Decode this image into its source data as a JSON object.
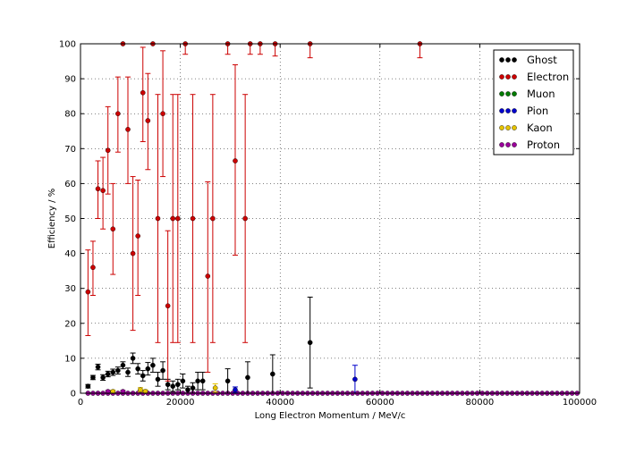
{
  "chart_data": {
    "type": "scatter",
    "title": "",
    "xlabel": "Long Electron Momentum / MeV/c",
    "ylabel": "Efficiency / %",
    "xlim": [
      0,
      100000
    ],
    "ylim": [
      0,
      100
    ],
    "x_ticks": [
      0,
      20000,
      40000,
      60000,
      80000,
      100000
    ],
    "y_ticks": [
      0,
      10,
      20,
      30,
      40,
      50,
      60,
      70,
      80,
      90,
      100
    ],
    "grid": true,
    "legend_position": "top-right",
    "series": [
      {
        "name": "Ghost",
        "color": "#000000",
        "points": [
          {
            "x": 1500,
            "y": 2,
            "err": 0.5
          },
          {
            "x": 2500,
            "y": 4.5,
            "err": 0.6
          },
          {
            "x": 3500,
            "y": 7.5,
            "err": 0.8
          },
          {
            "x": 4500,
            "y": 4.5,
            "err": 0.8
          },
          {
            "x": 5500,
            "y": 5.5,
            "err": 0.8
          },
          {
            "x": 6500,
            "y": 6,
            "err": 0.9
          },
          {
            "x": 7500,
            "y": 6.5,
            "err": 1
          },
          {
            "x": 8500,
            "y": 8,
            "err": 1
          },
          {
            "x": 9500,
            "y": 6,
            "err": 1.2
          },
          {
            "x": 10500,
            "y": 10,
            "err": 1.5
          },
          {
            "x": 11500,
            "y": 7,
            "err": 1.5
          },
          {
            "x": 12500,
            "y": 5,
            "err": 1.5
          },
          {
            "x": 13500,
            "y": 7,
            "err": 1.8
          },
          {
            "x": 14500,
            "y": 8,
            "err": 2
          },
          {
            "x": 15500,
            "y": 4,
            "err": 2
          },
          {
            "x": 16500,
            "y": 6.5,
            "err": 2.5
          },
          {
            "x": 17500,
            "y": 2.5,
            "err": 1.5
          },
          {
            "x": 18500,
            "y": 2,
            "err": 1.5
          },
          {
            "x": 19500,
            "y": 2.5,
            "err": 1.5
          },
          {
            "x": 20500,
            "y": 3.5,
            "err": 2
          },
          {
            "x": 21500,
            "y": 1,
            "err": 1
          },
          {
            "x": 22500,
            "y": 1.5,
            "err": 1.5
          },
          {
            "x": 23500,
            "y": 3.5,
            "err": 2.5
          },
          {
            "x": 24500,
            "y": 3.5,
            "err": 2.5
          },
          {
            "x": 29500,
            "y": 3.5,
            "err": 3.5
          },
          {
            "x": 33500,
            "y": 4.5,
            "err": 4.5
          },
          {
            "x": 38500,
            "y": 5.5,
            "err": 5.5
          },
          {
            "x": 46000,
            "y": 14.5,
            "err": 13
          }
        ]
      },
      {
        "name": "Electron",
        "color": "#cc0000",
        "points": [
          {
            "x": 1500,
            "y": 29,
            "lo": 16.5,
            "hi": 41
          },
          {
            "x": 2500,
            "y": 36,
            "lo": 28,
            "hi": 43.5
          },
          {
            "x": 3500,
            "y": 58.5,
            "lo": 50,
            "hi": 66.5
          },
          {
            "x": 4500,
            "y": 58,
            "lo": 47,
            "hi": 67.5
          },
          {
            "x": 5500,
            "y": 69.5,
            "lo": 57,
            "hi": 82
          },
          {
            "x": 6500,
            "y": 47,
            "lo": 34,
            "hi": 60
          },
          {
            "x": 7500,
            "y": 80,
            "lo": 69,
            "hi": 90.5
          },
          {
            "x": 8500,
            "y": 100,
            "lo": 100,
            "hi": 100
          },
          {
            "x": 9500,
            "y": 75.5,
            "lo": 60,
            "hi": 90.5
          },
          {
            "x": 10500,
            "y": 40,
            "lo": 18,
            "hi": 62
          },
          {
            "x": 11500,
            "y": 45,
            "lo": 28,
            "hi": 61
          },
          {
            "x": 12500,
            "y": 86,
            "lo": 72,
            "hi": 99
          },
          {
            "x": 13500,
            "y": 78,
            "lo": 64,
            "hi": 91.5
          },
          {
            "x": 14500,
            "y": 100,
            "lo": 100,
            "hi": 100
          },
          {
            "x": 15500,
            "y": 50,
            "lo": 14.5,
            "hi": 85.5
          },
          {
            "x": 16500,
            "y": 80,
            "lo": 62,
            "hi": 98
          },
          {
            "x": 17500,
            "y": 25,
            "lo": 3.5,
            "hi": 46.5
          },
          {
            "x": 18500,
            "y": 50,
            "lo": 14.5,
            "hi": 85.5
          },
          {
            "x": 19500,
            "y": 50,
            "lo": 14.5,
            "hi": 85.5
          },
          {
            "x": 21000,
            "y": 100,
            "lo": 97,
            "hi": 100
          },
          {
            "x": 22500,
            "y": 50,
            "lo": 14.5,
            "hi": 85.5
          },
          {
            "x": 25500,
            "y": 33.5,
            "lo": 6,
            "hi": 60.5
          },
          {
            "x": 26500,
            "y": 50,
            "lo": 14.5,
            "hi": 85.5
          },
          {
            "x": 29500,
            "y": 100,
            "lo": 97,
            "hi": 100
          },
          {
            "x": 31000,
            "y": 66.5,
            "lo": 39.5,
            "hi": 94
          },
          {
            "x": 33000,
            "y": 50,
            "lo": 14.5,
            "hi": 85.5
          },
          {
            "x": 34000,
            "y": 100,
            "lo": 97,
            "hi": 100
          },
          {
            "x": 36000,
            "y": 100,
            "lo": 97,
            "hi": 100
          },
          {
            "x": 39000,
            "y": 100,
            "lo": 96.5,
            "hi": 100
          },
          {
            "x": 46000,
            "y": 100,
            "lo": 96,
            "hi": 100
          },
          {
            "x": 68000,
            "y": 100,
            "lo": 96,
            "hi": 100
          }
        ]
      },
      {
        "name": "Muon",
        "color": "#007a00",
        "points": []
      },
      {
        "name": "Pion",
        "color": "#0000cc",
        "points": [
          {
            "x": 31000,
            "y": 1,
            "err": 0.8
          },
          {
            "x": 55000,
            "y": 4,
            "err": 4
          }
        ]
      },
      {
        "name": "Kaon",
        "color": "#e6c300",
        "points": [
          {
            "x": 6500,
            "y": 0.5,
            "err": 0.4
          },
          {
            "x": 12000,
            "y": 1,
            "err": 0.6
          },
          {
            "x": 13000,
            "y": 0.5,
            "err": 0.5
          },
          {
            "x": 27000,
            "y": 1.5,
            "err": 1.2
          }
        ]
      },
      {
        "name": "Proton",
        "color": "#990099",
        "zero_line_from": 1500,
        "zero_line_to": 100000,
        "zero_line_step": 1000,
        "points": [
          {
            "x": 5500,
            "y": 0.5,
            "err": 0.3
          },
          {
            "x": 8500,
            "y": 0.5,
            "err": 0.3
          }
        ]
      }
    ]
  }
}
